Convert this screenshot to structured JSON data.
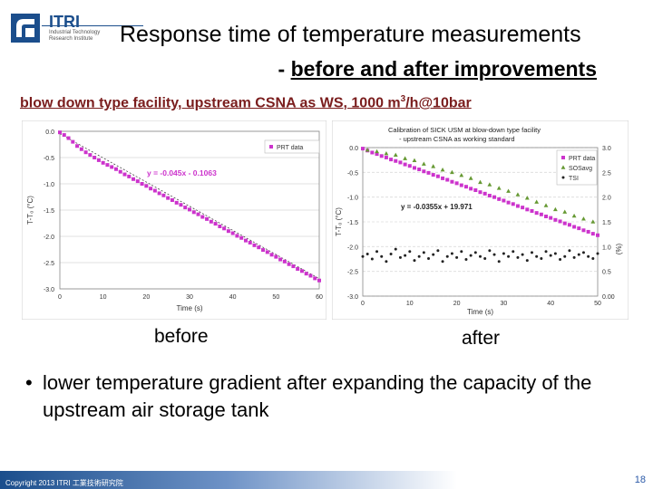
{
  "slide": {
    "logo_text": "ITRI",
    "logo_subtext": "Industrial Technology Research Institute",
    "title_line1": "Response time of temperature measurements",
    "title_line2_prefix": "- ",
    "title_line2": "before and after improvements",
    "subheading_pre": "blow down type facility, upstream CSNA as WS, 1000 m",
    "subheading_sup": "3",
    "subheading_post": "/h@10bar",
    "caption_before": "before",
    "caption_after": "after",
    "bullet": "lower temperature gradient after expanding the capacity of the upstream air storage tank",
    "copyright": "Copyright 2013 ITRI 工業技術研究院",
    "page_number": "18",
    "colors": {
      "prt": "#cc33cc",
      "sosavg": "#669933",
      "tsi": "#222222",
      "fit": "#444444",
      "title_red": "#7a1d1d"
    }
  },
  "chart_data": [
    {
      "type": "scatter",
      "title": "",
      "xlabel": "Time (s)",
      "ylabel": "T-T₀ (°C)",
      "xlim": [
        0,
        60
      ],
      "ylim": [
        -3.0,
        0.0
      ],
      "xticks": [
        0,
        10,
        20,
        30,
        40,
        50,
        60
      ],
      "yticks": [
        0.0,
        -0.5,
        -1.0,
        -1.5,
        -2.0,
        -2.5,
        -3.0
      ],
      "ytick_labels": [
        "0.0",
        "-0.5",
        "-1.0",
        "-1.5",
        "-2.0",
        "-2.5",
        "-3.0"
      ],
      "legend": "top-right",
      "fit_label": "y = -0.045x - 0.1063",
      "fit": {
        "slope": -0.045,
        "intercept": -0.1063
      },
      "series": [
        {
          "name": "PRT data",
          "x": [
            0,
            1,
            2,
            3,
            4,
            5,
            6,
            7,
            8,
            9,
            10,
            11,
            12,
            13,
            14,
            15,
            16,
            17,
            18,
            19,
            20,
            21,
            22,
            23,
            24,
            25,
            26,
            27,
            28,
            29,
            30,
            31,
            32,
            33,
            34,
            35,
            36,
            37,
            38,
            39,
            40,
            41,
            42,
            43,
            44,
            45,
            46,
            47,
            48,
            49,
            50,
            51,
            52,
            53,
            54,
            55,
            56,
            57,
            58,
            59,
            60
          ],
          "y": [
            -0.02,
            -0.07,
            -0.13,
            -0.2,
            -0.28,
            -0.34,
            -0.4,
            -0.45,
            -0.5,
            -0.55,
            -0.6,
            -0.64,
            -0.68,
            -0.72,
            -0.77,
            -0.82,
            -0.86,
            -0.91,
            -0.95,
            -1.0,
            -1.04,
            -1.09,
            -1.13,
            -1.18,
            -1.22,
            -1.27,
            -1.31,
            -1.36,
            -1.4,
            -1.45,
            -1.49,
            -1.54,
            -1.58,
            -1.63,
            -1.67,
            -1.72,
            -1.76,
            -1.81,
            -1.85,
            -1.9,
            -1.94,
            -1.99,
            -2.03,
            -2.08,
            -2.12,
            -2.17,
            -2.21,
            -2.26,
            -2.3,
            -2.35,
            -2.39,
            -2.44,
            -2.48,
            -2.53,
            -2.57,
            -2.62,
            -2.66,
            -2.71,
            -2.75,
            -2.8,
            -2.84
          ]
        }
      ]
    },
    {
      "type": "scatter",
      "title": "Calibration of SICK USM at blow-down type facility",
      "subtitle": "- upstream CSNA as working standard",
      "xlabel": "Time (s)",
      "ylabel": "T-T₀ (°C)",
      "y2label": "(%)",
      "xlim": [
        0,
        50
      ],
      "ylim": [
        -3.0,
        0.0
      ],
      "y2lim": [
        0.0,
        3.0
      ],
      "xticks": [
        0,
        10,
        20,
        30,
        40,
        50
      ],
      "yticks": [
        0.0,
        -0.5,
        -1.0,
        -1.5,
        -2.0,
        -2.5,
        -3.0
      ],
      "ytick_labels": [
        "0.0",
        "-0.5",
        "-1.0",
        "-1.5",
        "-2.0",
        "-2.5",
        "-3.0"
      ],
      "y2ticks": [
        3.0,
        2.5,
        2.0,
        1.5,
        1.0,
        0.5,
        0.0
      ],
      "y2tick_labels": [
        "3.0",
        "2.5",
        "2.0",
        "1.5",
        "1.0",
        "0.5",
        "0.00"
      ],
      "legend": "top-right",
      "fit_label": "y = -0.0355x + 19.971",
      "series": [
        {
          "name": "PRT data",
          "axis": "left",
          "x": [
            0,
            1,
            2,
            3,
            4,
            5,
            6,
            7,
            8,
            9,
            10,
            11,
            12,
            13,
            14,
            15,
            16,
            17,
            18,
            19,
            20,
            21,
            22,
            23,
            24,
            25,
            26,
            27,
            28,
            29,
            30,
            31,
            32,
            33,
            34,
            35,
            36,
            37,
            38,
            39,
            40,
            41,
            42,
            43,
            44,
            45,
            46,
            47,
            48,
            49,
            50
          ],
          "y": [
            -0.02,
            -0.06,
            -0.1,
            -0.13,
            -0.17,
            -0.2,
            -0.24,
            -0.27,
            -0.3,
            -0.34,
            -0.37,
            -0.41,
            -0.44,
            -0.48,
            -0.51,
            -0.55,
            -0.58,
            -0.62,
            -0.65,
            -0.69,
            -0.72,
            -0.76,
            -0.79,
            -0.83,
            -0.86,
            -0.9,
            -0.93,
            -0.97,
            -1.0,
            -1.04,
            -1.07,
            -1.11,
            -1.14,
            -1.18,
            -1.21,
            -1.25,
            -1.28,
            -1.32,
            -1.35,
            -1.39,
            -1.42,
            -1.46,
            -1.49,
            -1.53,
            -1.56,
            -1.6,
            -1.63,
            -1.67,
            -1.7,
            -1.74,
            -1.77
          ]
        },
        {
          "name": "SOSavg",
          "axis": "left",
          "x": [
            1,
            3,
            5,
            7,
            9,
            11,
            13,
            15,
            17,
            19,
            21,
            23,
            25,
            27,
            29,
            31,
            33,
            35,
            37,
            39,
            41,
            43,
            45,
            47,
            49
          ],
          "y": [
            -0.05,
            -0.08,
            -0.12,
            -0.15,
            -0.22,
            -0.26,
            -0.33,
            -0.38,
            -0.45,
            -0.5,
            -0.56,
            -0.62,
            -0.7,
            -0.75,
            -0.82,
            -0.88,
            -0.95,
            -1.02,
            -1.1,
            -1.17,
            -1.25,
            -1.3,
            -1.38,
            -1.44,
            -1.5
          ]
        },
        {
          "name": "TSI",
          "axis": "right",
          "x": [
            0,
            1,
            2,
            3,
            4,
            5,
            6,
            7,
            8,
            9,
            10,
            11,
            12,
            13,
            14,
            15,
            16,
            17,
            18,
            19,
            20,
            21,
            22,
            23,
            24,
            25,
            26,
            27,
            28,
            29,
            30,
            31,
            32,
            33,
            34,
            35,
            36,
            37,
            38,
            39,
            40,
            41,
            42,
            43,
            44,
            45,
            46,
            47,
            48,
            49,
            50
          ],
          "y": [
            0.8,
            0.85,
            0.75,
            0.9,
            0.8,
            0.7,
            0.85,
            0.95,
            0.78,
            0.82,
            0.9,
            0.72,
            0.8,
            0.88,
            0.76,
            0.84,
            0.92,
            0.7,
            0.8,
            0.86,
            0.78,
            0.9,
            0.74,
            0.82,
            0.88,
            0.8,
            0.76,
            0.92,
            0.84,
            0.7,
            0.86,
            0.8,
            0.9,
            0.78,
            0.84,
            0.72,
            0.88,
            0.8,
            0.76,
            0.9,
            0.82,
            0.86,
            0.74,
            0.8,
            0.92,
            0.78,
            0.84,
            0.88,
            0.8,
            0.76,
            0.86
          ]
        }
      ]
    }
  ]
}
